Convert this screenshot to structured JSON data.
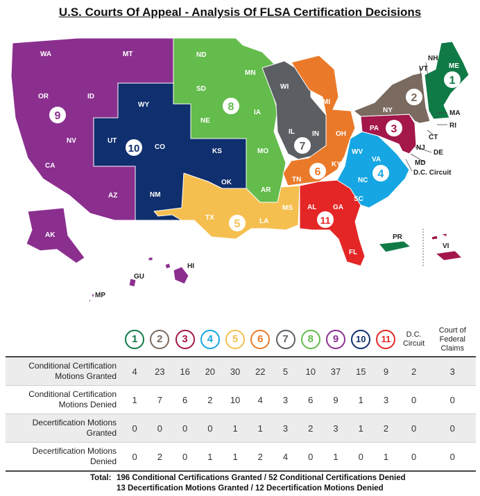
{
  "title": "U.S. Courts Of Appeal - Analysis Of FLSA Certification Decisions",
  "circuits": [
    {
      "label": "1",
      "color": "#0f7a46"
    },
    {
      "label": "2",
      "color": "#7a6a5f"
    },
    {
      "label": "3",
      "color": "#a3174a"
    },
    {
      "label": "4",
      "color": "#16a6e3"
    },
    {
      "label": "5",
      "color": "#f5bf4f"
    },
    {
      "label": "6",
      "color": "#ea7a2a"
    },
    {
      "label": "7",
      "color": "#5b5f63"
    },
    {
      "label": "8",
      "color": "#63bc4b"
    },
    {
      "label": "9",
      "color": "#8b2f8f"
    },
    {
      "label": "10",
      "color": "#0f2f6e"
    },
    {
      "label": "11",
      "color": "#e42626"
    },
    {
      "label": "D.C. Circuit",
      "color": "#222222"
    },
    {
      "label": "Court of Federal Claims",
      "color": "#222222"
    }
  ],
  "states": {
    "WA": "WA",
    "OR": "OR",
    "CA": "CA",
    "NV": "NV",
    "ID": "ID",
    "MT": "MT",
    "AZ": "AZ",
    "AK": "AK",
    "HI": "HI",
    "GU": "GU",
    "MP": "MP",
    "WY": "WY",
    "UT": "UT",
    "CO": "CO",
    "KS": "KS",
    "OK": "OK",
    "NM": "NM",
    "ND": "ND",
    "SD": "SD",
    "NE": "NE",
    "MN": "MN",
    "IA": "IA",
    "MO": "MO",
    "AR": "AR",
    "TX": "TX",
    "LA": "LA",
    "MS": "MS",
    "WI": "WI",
    "IL": "IL",
    "IN": "IN",
    "MI": "MI",
    "OH": "OH",
    "KY": "KY",
    "TN": "TN",
    "AL": "AL",
    "GA": "GA",
    "FL": "FL",
    "WV": "WV",
    "VA": "VA",
    "NC": "NC",
    "SC": "SC",
    "MD": "MD",
    "PA": "PA",
    "NJ": "NJ",
    "DE": "DE",
    "VI": "VI",
    "NY": "NY",
    "VT": "VT",
    "CT": "CT",
    "ME": "ME",
    "NH": "NH",
    "MA": "MA",
    "RI": "RI",
    "PR": "PR",
    "DC": "D.C. Circuit"
  },
  "rows": [
    {
      "label": "Conditional Certification Motions Granted",
      "values": [
        "4",
        "23",
        "16",
        "20",
        "30",
        "22",
        "5",
        "10",
        "37",
        "15",
        "9",
        "2",
        "3"
      ]
    },
    {
      "label": "Conditional Certification Motions Denied",
      "values": [
        "1",
        "7",
        "6",
        "2",
        "10",
        "4",
        "3",
        "6",
        "9",
        "1",
        "3",
        "0",
        "0"
      ]
    },
    {
      "label": "Decertification Motions Granted",
      "values": [
        "0",
        "0",
        "0",
        "0",
        "1",
        "1",
        "3",
        "2",
        "3",
        "1",
        "2",
        "0",
        "0"
      ]
    },
    {
      "label": "Decertification Motions Denied",
      "values": [
        "0",
        "2",
        "0",
        "1",
        "1",
        "2",
        "4",
        "0",
        "1",
        "0",
        "1",
        "0",
        "0"
      ]
    }
  ],
  "totals": {
    "label": "Total:",
    "line1": "196 Conditional Certifications Granted / 52 Conditional Certifications Denied",
    "line2": "13 Decertification Motions Granted / 12 Decertification Motions Denied"
  }
}
